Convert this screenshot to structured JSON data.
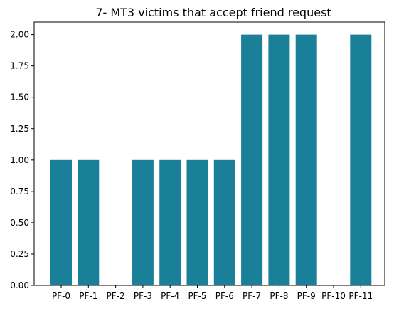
{
  "chart_data": {
    "type": "bar",
    "title": "7- MT3 victims that accept friend request",
    "xlabel": "",
    "ylabel": "",
    "categories": [
      "PF-0",
      "PF-1",
      "PF-2",
      "PF-3",
      "PF-4",
      "PF-5",
      "PF-6",
      "PF-7",
      "PF-8",
      "PF-9",
      "PF-10",
      "PF-11"
    ],
    "values": [
      1,
      1,
      0,
      1,
      1,
      1,
      1,
      2,
      2,
      2,
      0,
      2
    ],
    "ylim": [
      0,
      2.1
    ],
    "yticks": [
      "0.00",
      "0.25",
      "0.50",
      "0.75",
      "1.00",
      "1.25",
      "1.50",
      "1.75",
      "2.00"
    ],
    "bar_color": "#1a7f99",
    "grid": false,
    "legend": "none"
  }
}
